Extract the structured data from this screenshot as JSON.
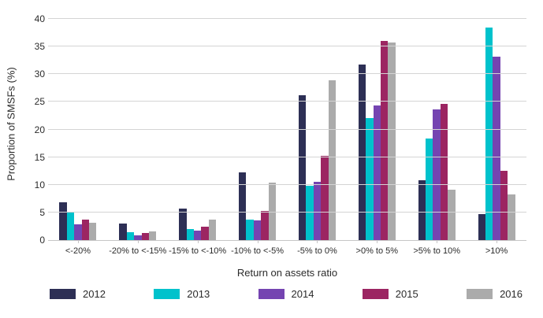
{
  "chart_data": {
    "type": "bar",
    "title": "",
    "xlabel": "Return on assets ratio",
    "ylabel": "Proportion of SMSFs (%)",
    "ylim": [
      0,
      40
    ],
    "ytick_step": 5,
    "grid": true,
    "legend_position": "bottom",
    "categories": [
      "<-20%",
      "-20% to <-15%",
      "-15% to <-10%",
      "-10% to <-5%",
      "-5% to 0%",
      ">0% to 5%",
      ">5% to 10%",
      ">10%"
    ],
    "series": [
      {
        "name": "2012",
        "color": "#2d2f55",
        "values": [
          6.9,
          3.0,
          5.7,
          12.3,
          26.2,
          31.7,
          10.8,
          4.7
        ]
      },
      {
        "name": "2013",
        "color": "#00c2cc",
        "values": [
          5.0,
          1.4,
          2.0,
          3.7,
          9.8,
          22.0,
          18.3,
          38.5
        ]
      },
      {
        "name": "2014",
        "color": "#7544b1",
        "values": [
          2.9,
          0.8,
          1.7,
          3.5,
          10.6,
          24.3,
          23.7,
          33.1
        ]
      },
      {
        "name": "2015",
        "color": "#9c2562",
        "values": [
          3.7,
          1.3,
          2.4,
          5.3,
          15.3,
          36.0,
          24.6,
          12.5
        ]
      },
      {
        "name": "2016",
        "color": "#ababab",
        "values": [
          3.2,
          1.6,
          3.7,
          10.4,
          28.9,
          35.7,
          9.1,
          8.2
        ]
      }
    ],
    "colors": {
      "gridline": "#d4d4d4",
      "axis_line": "#c6c6c6",
      "text": "#2b2b2b"
    }
  }
}
